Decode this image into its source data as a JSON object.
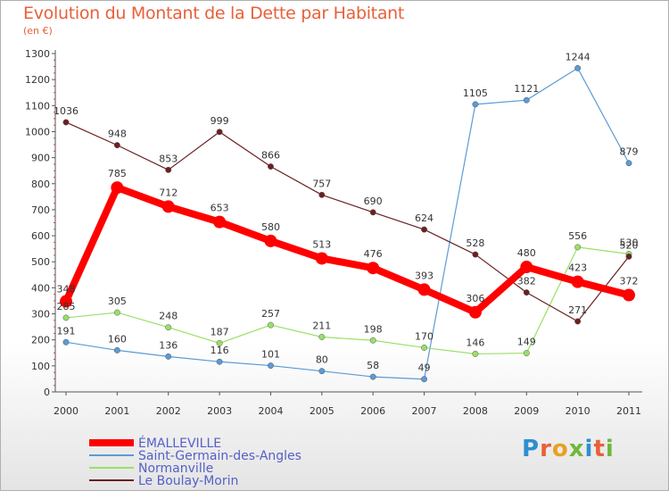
{
  "title": "Evolution du Montant de la Dette par Habitant",
  "subtitle": "(en €)",
  "logo": {
    "text": "Proxiti",
    "letters": [
      "P",
      "r",
      "o",
      "x",
      "i",
      "t",
      "i"
    ],
    "colors": [
      "#2e8fd0",
      "#e8603a",
      "#e8a020",
      "#6fb83a",
      "#2e8fd0",
      "#e8603a",
      "#6fb83a"
    ]
  },
  "chart_data": {
    "type": "line",
    "x": [
      "2000",
      "2001",
      "2002",
      "2003",
      "2004",
      "2005",
      "2006",
      "2007",
      "2008",
      "2009",
      "2010",
      "2011"
    ],
    "ylim": [
      0,
      1300
    ],
    "yticks": [
      0,
      100,
      200,
      300,
      400,
      500,
      600,
      700,
      800,
      900,
      1000,
      1100,
      1200,
      1300
    ],
    "legend_position": "bottom-left",
    "grid": false,
    "series": [
      {
        "name": "ÉMALLEVILLE",
        "color": "#ff0000",
        "values": [
          348,
          785,
          712,
          653,
          580,
          513,
          476,
          393,
          306,
          480,
          423,
          372
        ]
      },
      {
        "name": "Saint-Germain-des-Angles",
        "color": "#5b9bd5",
        "values": [
          191,
          160,
          136,
          116,
          101,
          80,
          58,
          49,
          1105,
          1121,
          1244,
          879
        ]
      },
      {
        "name": "Normanville",
        "color": "#99e066",
        "values": [
          285,
          305,
          248,
          187,
          257,
          211,
          198,
          170,
          146,
          149,
          556,
          530
        ]
      },
      {
        "name": "Le Boulay-Morin",
        "color": "#6b2020",
        "values": [
          1036,
          948,
          853,
          999,
          866,
          757,
          690,
          624,
          528,
          382,
          271,
          520
        ]
      }
    ]
  }
}
